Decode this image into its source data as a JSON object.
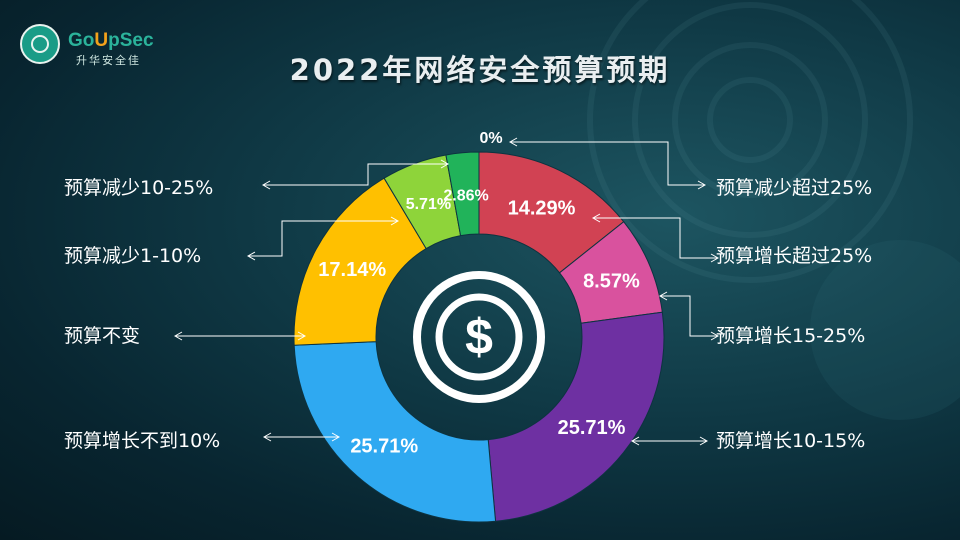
{
  "logo": {
    "name_prefix": "Go",
    "name_highlight": "U",
    "name_suffix": "pSec",
    "subtitle": "升华安全佳"
  },
  "title": "2022年网络安全预算预期",
  "chart_data": {
    "type": "pie",
    "title": "2022年网络安全预算预期",
    "donut": true,
    "center_icon": "dollar-icon",
    "legend": "none",
    "slices": [
      {
        "label": "预算减少超过25%",
        "value": 0,
        "value_label": "0%",
        "color": "#c0504d"
      },
      {
        "label": "预算增长超过25%",
        "value": 14.29,
        "value_label": "14.29%",
        "color": "#d14253"
      },
      {
        "label": "预算增长15-25%",
        "value": 8.57,
        "value_label": "8.57%",
        "color": "#d9529e"
      },
      {
        "label": "预算增长10-15%",
        "value": 25.71,
        "value_label": "25.71%",
        "color": "#6e30a2"
      },
      {
        "label": "预算增长不到10%",
        "value": 25.71,
        "value_label": "25.71%",
        "color": "#2fa9f1"
      },
      {
        "label": "预算不变",
        "value": 17.14,
        "value_label": "17.14%",
        "color": "#ffc000"
      },
      {
        "label": "预算减少1-10%",
        "value": 5.71,
        "value_label": "5.71%",
        "color": "#8ed43a"
      },
      {
        "label": "预算减少10-25%",
        "value": 2.86,
        "value_label": "2.86%",
        "color": "#21b35a"
      }
    ]
  }
}
